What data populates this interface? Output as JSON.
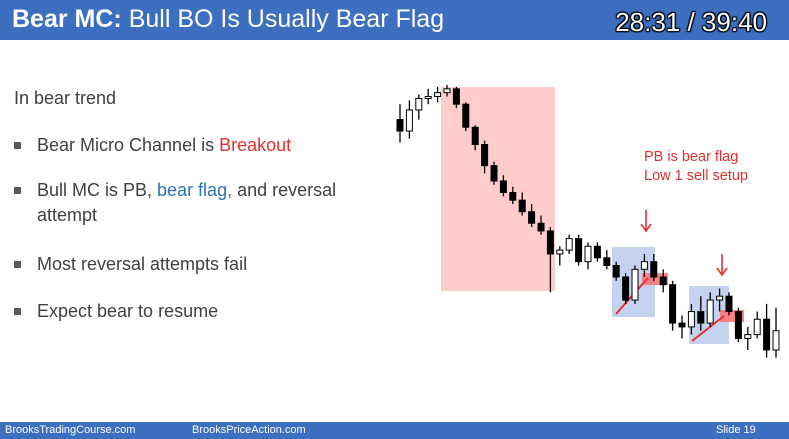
{
  "header": {
    "title_bold": "Bear MC:",
    "title_rest": "Bull BO Is Usually Bear Flag",
    "timer": "28:31 / 39:40"
  },
  "content": {
    "trend": "In bear trend",
    "bullets": [
      {
        "prefix": "Bear Micro Channel is ",
        "highlight": "Breakout"
      },
      {
        "prefix": "Bull MC is PB, ",
        "highlight": "bear flag,",
        "suffix": " and reversal attempt"
      },
      {
        "text": "Most reversal attempts fail"
      },
      {
        "text": "Expect bear to resume"
      }
    ]
  },
  "annotation": {
    "line1": "PB is bear flag",
    "line2": "Low 1 sell setup"
  },
  "footer": {
    "site1": "BrooksTradingCourse.com",
    "site2": "BrooksPriceAction.com",
    "slide": "Slide  19"
  },
  "colors": {
    "header_bg": "#3d6fc0",
    "breakout_red": "#e03030",
    "bear_flag_blue": "#2e74b5",
    "channel_shade": "#ffcccc",
    "flag_box": "#c5d3f0"
  },
  "chart_data": {
    "type": "candlestick",
    "candles": [
      {
        "o": 20,
        "h": 28,
        "l": 8,
        "c": 14
      },
      {
        "o": 14,
        "h": 30,
        "l": 10,
        "c": 25
      },
      {
        "o": 25,
        "h": 33,
        "l": 20,
        "c": 31
      },
      {
        "o": 31,
        "h": 36,
        "l": 28,
        "c": 32
      },
      {
        "o": 32,
        "h": 37,
        "l": 29,
        "c": 34
      },
      {
        "o": 34,
        "h": 38,
        "l": 32,
        "c": 36
      },
      {
        "o": 36,
        "h": 37,
        "l": 26,
        "c": 28
      },
      {
        "o": 28,
        "h": 29,
        "l": 14,
        "c": 16
      },
      {
        "o": 16,
        "h": 17,
        "l": 4,
        "c": 7
      },
      {
        "o": 7,
        "h": 9,
        "l": -8,
        "c": -4
      },
      {
        "o": -4,
        "h": -2,
        "l": -14,
        "c": -12
      },
      {
        "o": -12,
        "h": -9,
        "l": -20,
        "c": -18
      },
      {
        "o": -18,
        "h": -15,
        "l": -24,
        "c": -22
      },
      {
        "o": -22,
        "h": -18,
        "l": -30,
        "c": -28
      },
      {
        "o": -28,
        "h": -24,
        "l": -36,
        "c": -34
      },
      {
        "o": -34,
        "h": -30,
        "l": -40,
        "c": -38
      },
      {
        "o": -38,
        "h": -36,
        "l": -70,
        "c": -50
      },
      {
        "o": -50,
        "h": -46,
        "l": -56,
        "c": -48
      },
      {
        "o": -48,
        "h": -40,
        "l": -50,
        "c": -42
      },
      {
        "o": -42,
        "h": -40,
        "l": -56,
        "c": -54
      },
      {
        "o": -54,
        "h": -44,
        "l": -58,
        "c": -46
      },
      {
        "o": -46,
        "h": -44,
        "l": -54,
        "c": -52
      },
      {
        "o": -52,
        "h": -48,
        "l": -58,
        "c": -56
      },
      {
        "o": -56,
        "h": -54,
        "l": -64,
        "c": -62
      },
      {
        "o": -62,
        "h": -60,
        "l": -76,
        "c": -74
      },
      {
        "o": -74,
        "h": -56,
        "l": -76,
        "c": -58
      },
      {
        "o": -58,
        "h": -50,
        "l": -62,
        "c": -54
      },
      {
        "o": -54,
        "h": -50,
        "l": -64,
        "c": -62
      },
      {
        "o": -62,
        "h": -58,
        "l": -70,
        "c": -66
      },
      {
        "o": -66,
        "h": -64,
        "l": -90,
        "c": -86
      },
      {
        "o": -86,
        "h": -82,
        "l": -94,
        "c": -88
      },
      {
        "o": -88,
        "h": -76,
        "l": -92,
        "c": -80
      },
      {
        "o": -80,
        "h": -72,
        "l": -90,
        "c": -86
      },
      {
        "o": -86,
        "h": -70,
        "l": -88,
        "c": -74
      },
      {
        "o": -74,
        "h": -68,
        "l": -80,
        "c": -72
      },
      {
        "o": -72,
        "h": -70,
        "l": -82,
        "c": -80
      },
      {
        "o": -80,
        "h": -78,
        "l": -96,
        "c": -94
      },
      {
        "o": -94,
        "h": -88,
        "l": -100,
        "c": -92
      },
      {
        "o": -92,
        "h": -80,
        "l": -94,
        "c": -84
      },
      {
        "o": -84,
        "h": -76,
        "l": -104,
        "c": -100
      },
      {
        "o": -100,
        "h": -78,
        "l": -104,
        "c": -90
      }
    ]
  }
}
